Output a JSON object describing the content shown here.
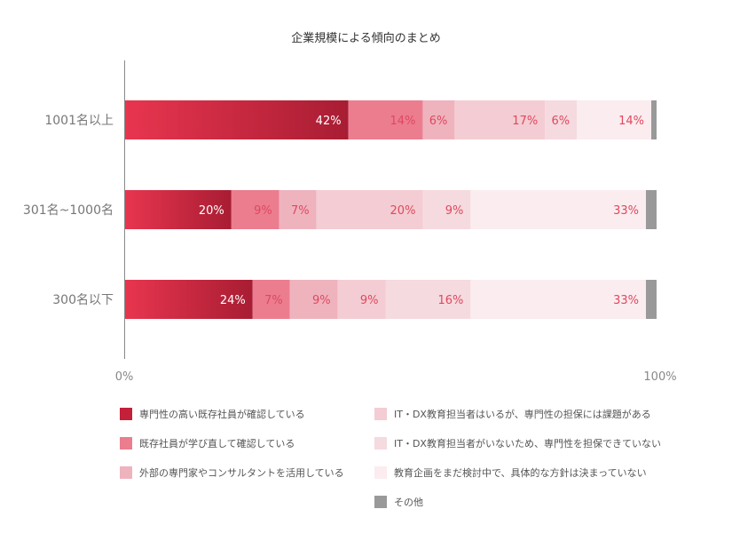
{
  "chart_data": {
    "type": "bar",
    "orientation": "horizontal",
    "stacked": true,
    "title": "企業規模による傾向のまとめ",
    "categories": [
      "1001名以上",
      "301名~1000名",
      "300名以下"
    ],
    "x_ticks": [
      "0%",
      "100%"
    ],
    "xlim": [
      0,
      100
    ],
    "series": [
      {
        "name": "専門性の高い既存社員が確認している",
        "color": "#c3203a",
        "values": [
          42,
          20,
          24
        ],
        "labels": [
          "42%",
          "20%",
          "24%"
        ]
      },
      {
        "name": "既存社員が学び直して確認している",
        "color": "#eb7d8f",
        "values": [
          14,
          9,
          7
        ],
        "labels": [
          "14%",
          "9%",
          "7%"
        ]
      },
      {
        "name": "外部の専門家やコンサルタントを活用している",
        "color": "#efb3be",
        "values": [
          6,
          7,
          9
        ],
        "labels": [
          "6%",
          "7%",
          "9%"
        ]
      },
      {
        "name": "IT・DX教育担当者はいるが、専門性の担保には課題がある",
        "color": "#f3cdd3",
        "values": [
          17,
          20,
          9
        ],
        "labels": [
          "17%",
          "20%",
          "9%"
        ]
      },
      {
        "name": "IT・DX教育担当者がいないため、専門性を担保できていない",
        "color": "#f5dadf",
        "values": [
          6,
          9,
          16
        ],
        "labels": [
          "6%",
          "9%",
          "16%"
        ]
      },
      {
        "name": "教育企画をまだ検討中で、具体的な方針は決まっていない",
        "color": "#faecef",
        "values": [
          14,
          33,
          33
        ],
        "labels": [
          "14%",
          "33%",
          "33%"
        ]
      },
      {
        "name": "その他",
        "color": "#999999",
        "values": [
          1,
          2,
          2
        ],
        "labels": [
          "",
          "",
          ""
        ]
      }
    ],
    "label_colors": {
      "dark": "#ffffff",
      "light": "#e0485e"
    },
    "axis_color": "#888888",
    "grid": false,
    "legend_position": "bottom"
  }
}
